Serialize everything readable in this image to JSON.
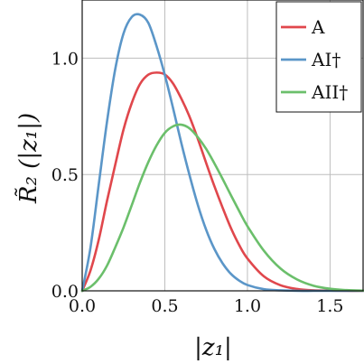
{
  "chart_data": {
    "type": "line",
    "title": "",
    "xlabel": "|z₁|",
    "ylabel": "R̃₂ (|z₁|)",
    "xlim": [
      0,
      1.7
    ],
    "ylim": [
      0,
      1.25
    ],
    "x_ticks": [
      0.0,
      0.5,
      1.0,
      1.5
    ],
    "x_tick_labels": [
      "0.0",
      "0.5",
      "1.0",
      "1.5"
    ],
    "y_ticks": [
      0.0,
      0.5,
      1.0
    ],
    "y_tick_labels": [
      "0.0",
      "0.5",
      "1.0"
    ],
    "grid": true,
    "legend_position": "top-right",
    "series": [
      {
        "name": "A",
        "color": "#e0474c",
        "x": [
          0,
          0.05,
          0.1,
          0.15,
          0.2,
          0.25,
          0.3,
          0.35,
          0.4,
          0.45,
          0.5,
          0.55,
          0.6,
          0.65,
          0.7,
          0.75,
          0.8,
          0.85,
          0.9,
          0.95,
          1.0,
          1.1,
          1.2,
          1.3,
          1.4,
          1.5,
          1.6,
          1.7
        ],
        "y": [
          0,
          0.087,
          0.219,
          0.386,
          0.542,
          0.693,
          0.807,
          0.889,
          0.929,
          0.938,
          0.93,
          0.891,
          0.826,
          0.748,
          0.653,
          0.55,
          0.45,
          0.357,
          0.27,
          0.197,
          0.139,
          0.062,
          0.024,
          0.008,
          0.002,
          0.001,
          0.0,
          0.0
        ]
      },
      {
        "name": "AI†",
        "color": "#5b96c8",
        "x": [
          0,
          0.05,
          0.1,
          0.15,
          0.2,
          0.25,
          0.3,
          0.35,
          0.4,
          0.45,
          0.5,
          0.55,
          0.6,
          0.65,
          0.7,
          0.75,
          0.8,
          0.85,
          0.9,
          0.95,
          1.0,
          1.1,
          1.2,
          1.3,
          1.4,
          1.5,
          1.6,
          1.7
        ],
        "y": [
          0,
          0.185,
          0.456,
          0.726,
          0.953,
          1.106,
          1.177,
          1.187,
          1.152,
          1.052,
          0.928,
          0.785,
          0.635,
          0.496,
          0.369,
          0.263,
          0.18,
          0.118,
          0.073,
          0.044,
          0.025,
          0.007,
          0.002,
          0.0,
          0.0,
          0.0,
          0.0,
          0.0
        ]
      },
      {
        "name": "AII†",
        "color": "#6bbf6b",
        "x": [
          0,
          0.05,
          0.1,
          0.15,
          0.2,
          0.25,
          0.3,
          0.35,
          0.4,
          0.45,
          0.5,
          0.55,
          0.6,
          0.65,
          0.7,
          0.75,
          0.8,
          0.85,
          0.9,
          0.95,
          1.0,
          1.1,
          1.2,
          1.3,
          1.4,
          1.5,
          1.6,
          1.7
        ],
        "y": [
          0,
          0.017,
          0.052,
          0.108,
          0.187,
          0.272,
          0.368,
          0.466,
          0.553,
          0.625,
          0.679,
          0.707,
          0.714,
          0.698,
          0.66,
          0.61,
          0.548,
          0.481,
          0.411,
          0.343,
          0.278,
          0.172,
          0.096,
          0.049,
          0.022,
          0.009,
          0.003,
          0.001
        ]
      }
    ]
  }
}
